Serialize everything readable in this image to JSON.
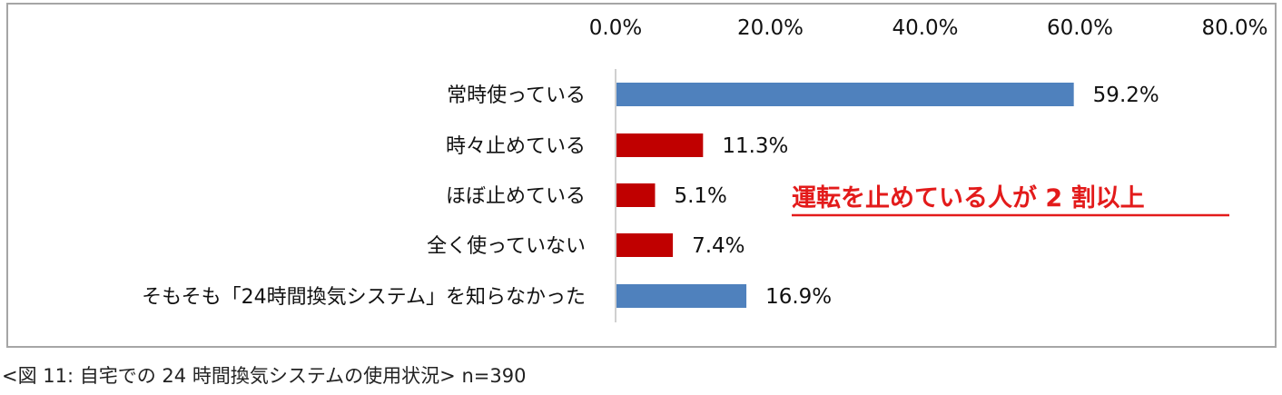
{
  "chart_data": {
    "type": "bar",
    "orientation": "horizontal",
    "categories": [
      "常時使っている",
      "時々止めている",
      "ほぼ止めている",
      "全く使っていない",
      "そもそも「24時間換気システム」を知らなかった"
    ],
    "values": [
      59.2,
      11.3,
      5.1,
      7.4,
      16.9
    ],
    "data_labels": [
      "59.2%",
      "11.3%",
      "5.1%",
      "7.4%",
      "16.9%"
    ],
    "bar_colors": [
      "#4f81bd",
      "#c00000",
      "#c00000",
      "#c00000",
      "#4f81bd"
    ],
    "xlim": [
      0,
      80
    ],
    "x_ticks": [
      0,
      20,
      40,
      60,
      80
    ],
    "x_tick_labels": [
      "0.0%",
      "20.0%",
      "40.0%",
      "60.0%",
      "80.0%"
    ],
    "x_axis_position": "top",
    "grid": false,
    "annotation": {
      "text": "運転を止めている人が 2 割以上",
      "color": "#e31b1b",
      "underlined": true
    }
  },
  "caption": "<図 11: 自宅での 24 時間換気システムの使用状況> n=390"
}
